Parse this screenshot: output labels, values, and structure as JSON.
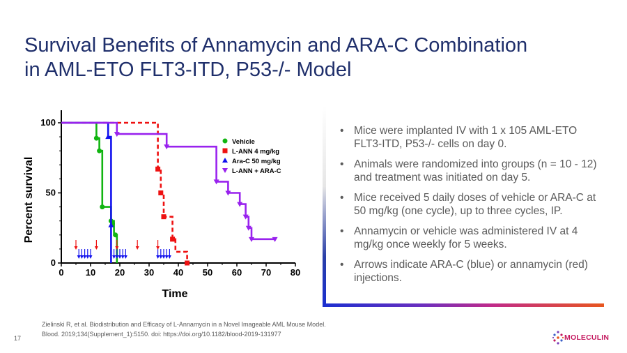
{
  "slide": {
    "title_line1": "Survival Benefits of Annamycin and ARA-C Combination",
    "title_line2": "in AML-ETO FLT3-ITD, P53-/- Model",
    "bullets": [
      "Mice were implanted IV with 1 x 105 AML-ETO FLT3-ITD, P53-/- cells on day 0.",
      "Animals were randomized into groups (n = 10 - 12) and treatment was initiated on day 5.",
      "Mice received 5 daily doses of vehicle or ARA-C at 50 mg/kg (one cycle), up to three cycles, IP.",
      "Annamycin or vehicle was administered IV at 4 mg/kg once weekly for 5 weeks.",
      "Arrows indicate ARA-C (blue) or annamycin (red) injections."
    ],
    "bullet_glyph": "•",
    "citation_line1": "Zielinski R, et al. Biodistribution and Efficacy of L-Annamycin in a Novel Imageable AML Mouse Model.",
    "citation_line2": "Blood. 2019;134(Supplement_1):5150.  doi: https://doi.org/10.1182/blood-2019-131977",
    "page_number": "17",
    "logo_text": "MOLECULIN",
    "colors": {
      "title": "#1f2f6b",
      "body_text": "#5a5a5a",
      "logo": "#c4195f"
    }
  },
  "chart_data": {
    "type": "line",
    "xlabel": "Time",
    "ylabel": "Percent survival",
    "xlim": [
      0,
      80
    ],
    "ylim": [
      0,
      100
    ],
    "x_ticks": [
      0,
      10,
      20,
      30,
      40,
      50,
      60,
      70,
      80
    ],
    "y_ticks": [
      0,
      50,
      100
    ],
    "legend_position": "right",
    "series": [
      {
        "name": "Vehicle",
        "color": "#11b511",
        "marker": "circle",
        "dashed": false,
        "steps": [
          [
            0,
            100
          ],
          [
            12,
            100
          ],
          [
            12,
            89
          ],
          [
            13,
            89
          ],
          [
            13,
            80
          ],
          [
            14,
            80
          ],
          [
            14,
            40
          ],
          [
            17,
            40
          ],
          [
            17,
            30
          ],
          [
            18,
            30
          ],
          [
            18,
            20
          ],
          [
            19,
            20
          ],
          [
            19,
            0
          ]
        ],
        "points": [
          [
            12,
            89
          ],
          [
            13,
            80
          ],
          [
            14,
            40
          ],
          [
            17,
            30
          ],
          [
            17.5,
            28
          ],
          [
            18.5,
            20
          ]
        ]
      },
      {
        "name": "L-ANN 4 mg/kg",
        "color": "#ee1111",
        "marker": "square",
        "dashed": true,
        "steps": [
          [
            0,
            100
          ],
          [
            33,
            100
          ],
          [
            33,
            67
          ],
          [
            34,
            67
          ],
          [
            34,
            50
          ],
          [
            35,
            50
          ],
          [
            35,
            33
          ],
          [
            38,
            33
          ],
          [
            38,
            17
          ],
          [
            39,
            17
          ],
          [
            39,
            8
          ],
          [
            43,
            8
          ],
          [
            43,
            0
          ]
        ],
        "points": [
          [
            33,
            67
          ],
          [
            34,
            50
          ],
          [
            35,
            33
          ],
          [
            38,
            17
          ],
          [
            43,
            0
          ]
        ]
      },
      {
        "name": "Ara-C 50 mg/kg",
        "color": "#1111ee",
        "marker": "triangle",
        "dashed": false,
        "steps": [
          [
            0,
            100
          ],
          [
            16,
            100
          ],
          [
            16,
            90
          ],
          [
            17,
            90
          ],
          [
            17,
            0
          ]
        ],
        "points": [
          [
            16,
            90
          ],
          [
            17,
            27
          ]
        ]
      },
      {
        "name": "L-ANN + ARA-C",
        "color": "#9922ee",
        "marker": "triangle-down",
        "dashed": false,
        "steps": [
          [
            0,
            100
          ],
          [
            19,
            100
          ],
          [
            19,
            92
          ],
          [
            36,
            92
          ],
          [
            36,
            83
          ],
          [
            53,
            83
          ],
          [
            53,
            58
          ],
          [
            57,
            58
          ],
          [
            57,
            50
          ],
          [
            61,
            50
          ],
          [
            61,
            42
          ],
          [
            63,
            42
          ],
          [
            63,
            33
          ],
          [
            64,
            33
          ],
          [
            64,
            25
          ],
          [
            65,
            25
          ],
          [
            65,
            17
          ],
          [
            73,
            17
          ]
        ],
        "points": [
          [
            19,
            92
          ],
          [
            36,
            83
          ],
          [
            53,
            58
          ],
          [
            57,
            50
          ],
          [
            61,
            42
          ],
          [
            63,
            33
          ],
          [
            64,
            25
          ],
          [
            65,
            17
          ],
          [
            73,
            17
          ]
        ]
      }
    ],
    "arrows": [
      {
        "color": "#1111ee",
        "days": [
          6,
          7,
          8,
          9,
          10,
          18,
          19,
          20,
          21,
          22,
          33,
          34,
          35,
          36,
          37
        ]
      },
      {
        "color": "#ee1111",
        "days": [
          5,
          12,
          19,
          26,
          33
        ]
      }
    ]
  }
}
